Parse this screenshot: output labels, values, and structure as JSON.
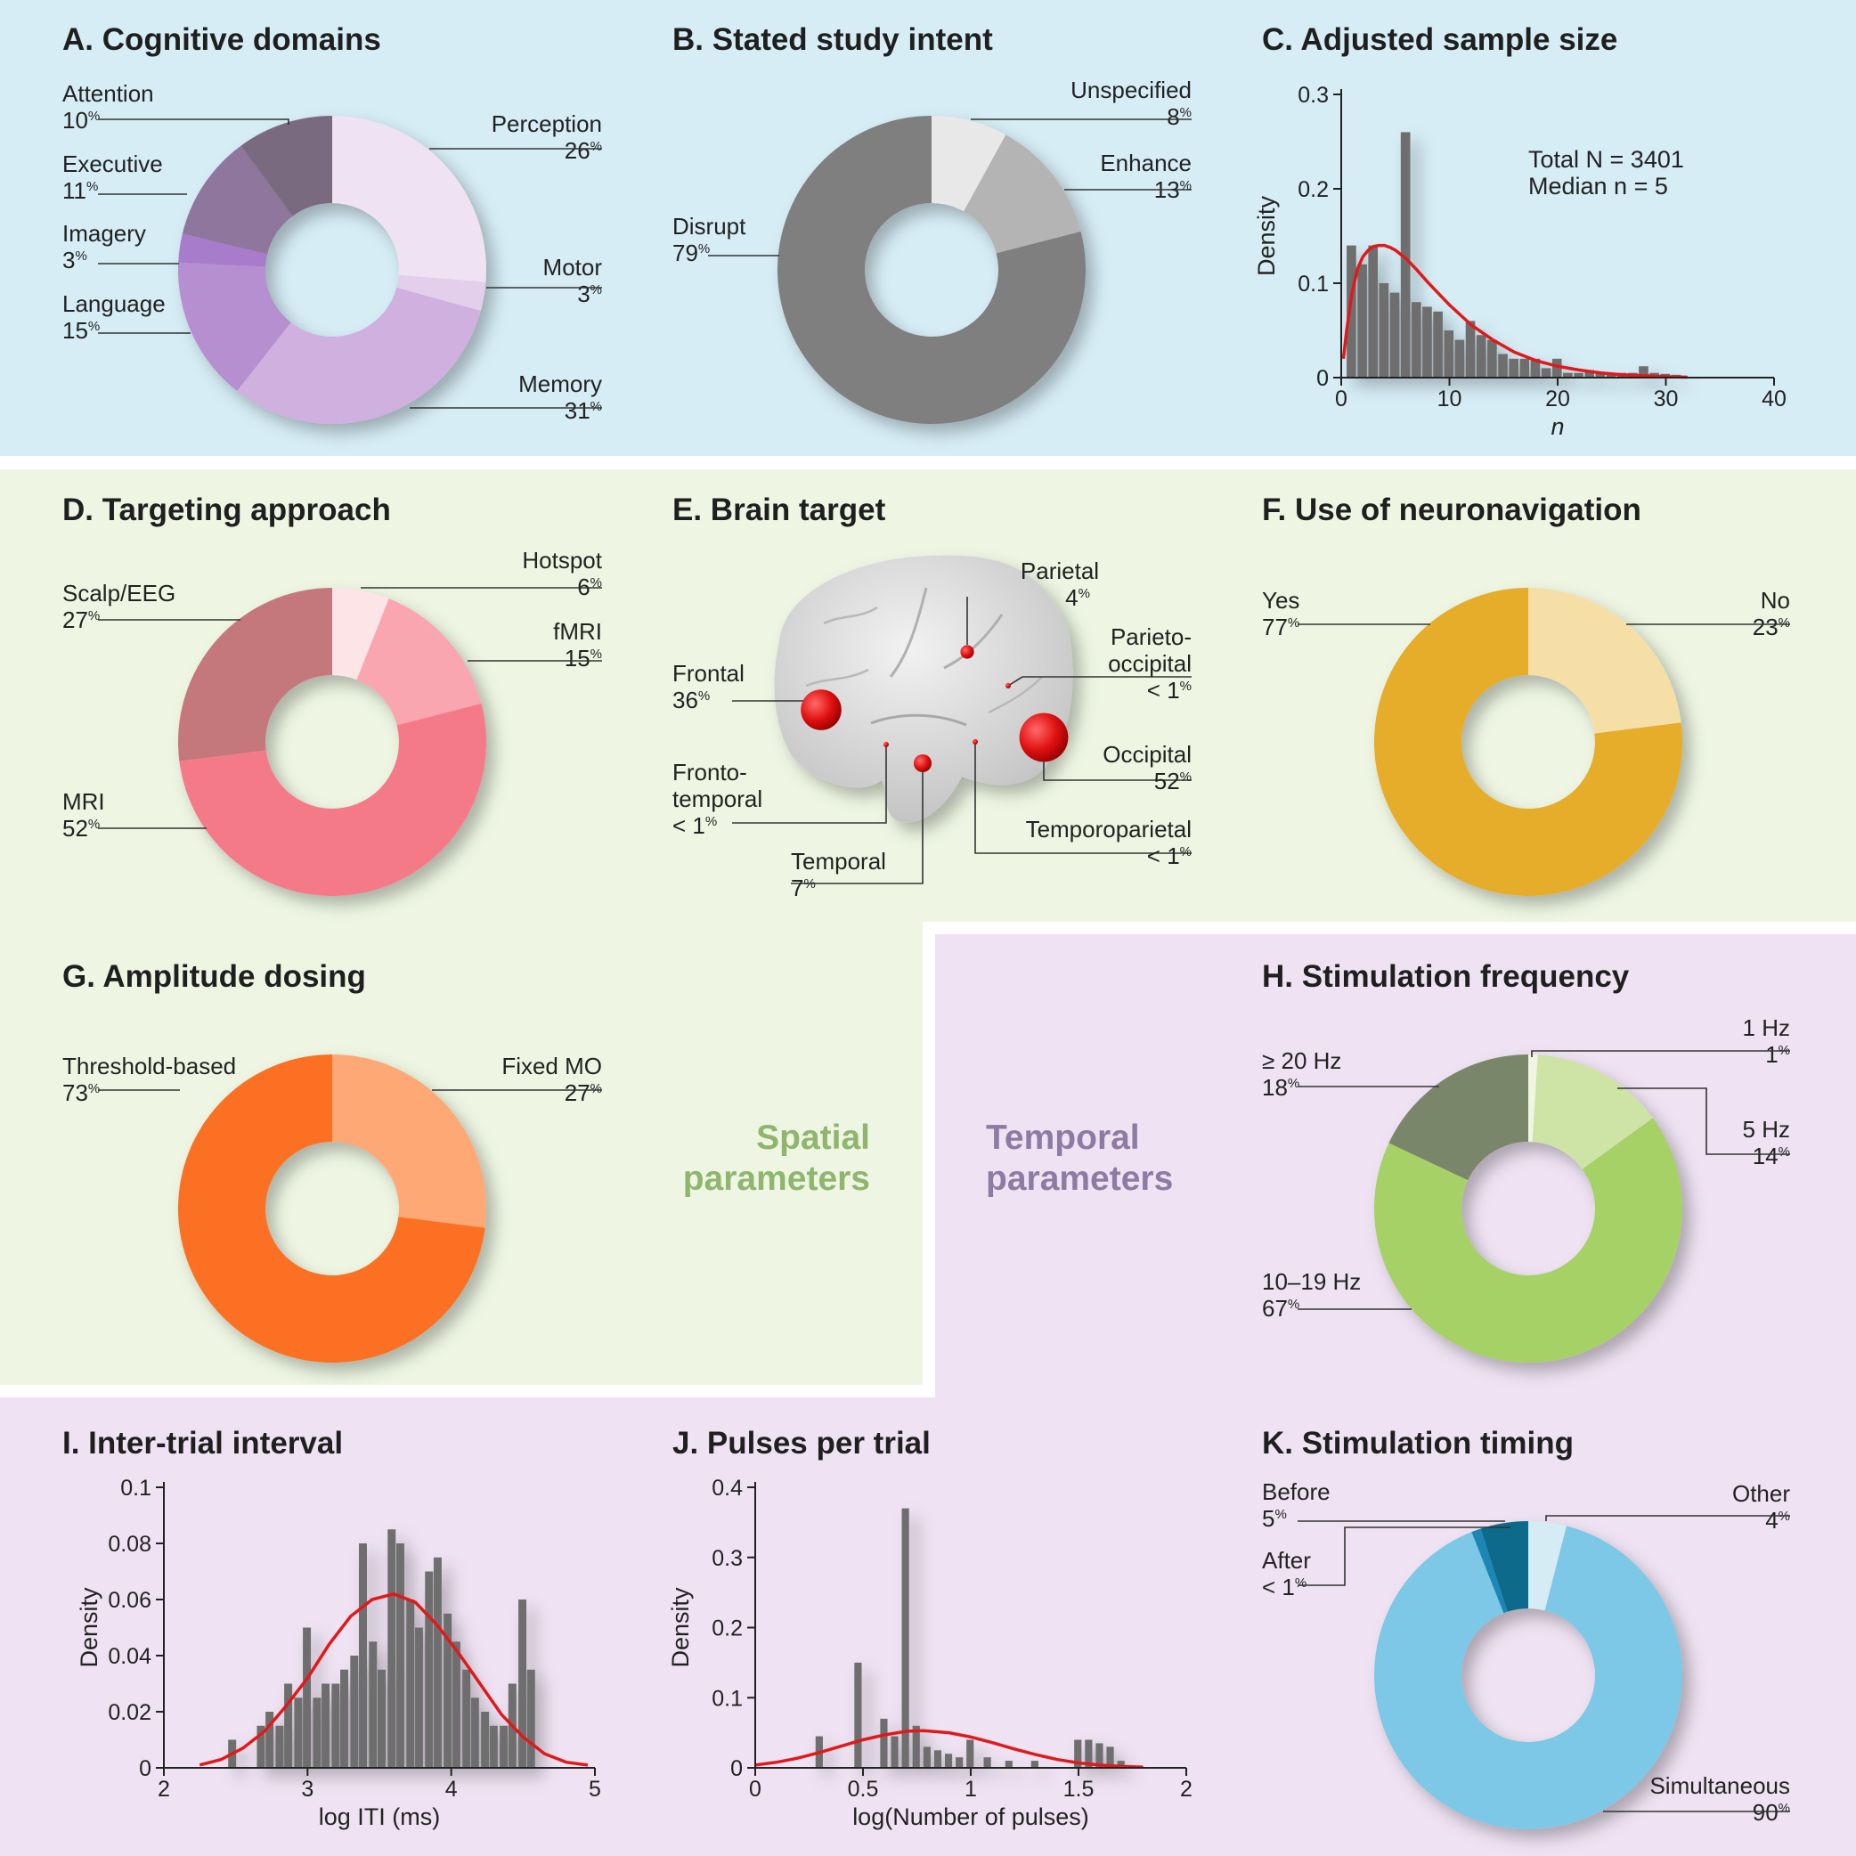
{
  "colors": {
    "blue_bg": "#d6edf6",
    "green_bg": "#eef6e3",
    "purple_bg": "#efe3f3",
    "hist_bar": "#6e6e6e",
    "fit_line": "#e0191b",
    "brain": "#d4d4d4",
    "target": "#e01010"
  },
  "sections": {
    "spatial": {
      "line1": "Spatial",
      "line2": "parameters",
      "color": "#8fb56e"
    },
    "temporal": {
      "line1": "Temporal",
      "line2": "parameters",
      "color": "#8f7aa3"
    }
  },
  "chart_data": [
    {
      "id": "A",
      "type": "pie",
      "title": "A. Cognitive domains",
      "slices": [
        {
          "label": "Perception",
          "pct": "26",
          "value": 26,
          "color": "#efe2f2"
        },
        {
          "label": "Motor",
          "pct": "3",
          "value": 3,
          "color": "#e3cfeb"
        },
        {
          "label": "Memory",
          "pct": "31",
          "value": 31,
          "color": "#cfb0de"
        },
        {
          "label": "Language",
          "pct": "15",
          "value": 15,
          "color": "#b58fcf"
        },
        {
          "label": "Imagery",
          "pct": "3",
          "value": 3,
          "color": "#a77bcb"
        },
        {
          "label": "Executive",
          "pct": "11",
          "value": 11,
          "color": "#8e769d"
        },
        {
          "label": "Attention",
          "pct": "10",
          "value": 10,
          "color": "#7a6a7f"
        }
      ]
    },
    {
      "id": "B",
      "type": "pie",
      "title": "B. Stated study intent",
      "slices": [
        {
          "label": "Unspecified",
          "pct": "8",
          "value": 8,
          "color": "#e8e8e8"
        },
        {
          "label": "Enhance",
          "pct": "13",
          "value": 13,
          "color": "#b4b4b4"
        },
        {
          "label": "Disrupt",
          "pct": "79",
          "value": 79,
          "color": "#7f7f7f"
        }
      ]
    },
    {
      "id": "C",
      "type": "bar",
      "title": "C. Adjusted sample size",
      "xlabel": "n",
      "ylabel": "Density",
      "xlim": [
        0,
        40
      ],
      "ylim": [
        0,
        0.3
      ],
      "xticks": [
        "0",
        "10",
        "20",
        "30",
        "40"
      ],
      "yticks": [
        "0",
        "0.1",
        "0.2",
        "0.3"
      ],
      "annotation_line1": "Total N = 3401",
      "annotation_line2": "Median n = 5",
      "bin_width": 1,
      "bins_x": [
        1,
        2,
        3,
        4,
        5,
        6,
        7,
        8,
        9,
        10,
        11,
        12,
        13,
        14,
        15,
        16,
        17,
        18,
        19,
        20,
        21,
        22,
        23,
        24,
        25,
        26,
        27,
        28,
        29,
        30,
        31
      ],
      "bins_y": [
        0.14,
        0.12,
        0.14,
        0.1,
        0.09,
        0.26,
        0.08,
        0.075,
        0.07,
        0.05,
        0.04,
        0.06,
        0.045,
        0.04,
        0.025,
        0.02,
        0.02,
        0.02,
        0.01,
        0.02,
        0.005,
        0.005,
        0.008,
        0.005,
        0.005,
        0.005,
        0.005,
        0.012,
        0.005,
        0.004,
        0.003
      ],
      "fit_x": [
        0.2,
        0.5,
        1,
        1.5,
        2,
        2.5,
        3,
        3.5,
        4,
        4.5,
        5,
        6,
        7,
        8,
        9,
        10,
        12,
        14,
        16,
        18,
        20,
        22,
        24,
        26,
        28,
        30,
        32
      ],
      "fit_y": [
        0.02,
        0.05,
        0.09,
        0.115,
        0.128,
        0.135,
        0.139,
        0.14,
        0.14,
        0.138,
        0.135,
        0.126,
        0.114,
        0.101,
        0.089,
        0.077,
        0.056,
        0.04,
        0.027,
        0.018,
        0.012,
        0.008,
        0.005,
        0.003,
        0.002,
        0.001,
        0.0005
      ]
    },
    {
      "id": "D",
      "type": "pie",
      "title": "D. Targeting approach",
      "slices": [
        {
          "label": "Hotspot",
          "pct": "6",
          "value": 6,
          "color": "#fde4e6"
        },
        {
          "label": "fMRI",
          "pct": "15",
          "value": 15,
          "color": "#f9a6b0"
        },
        {
          "label": "MRI",
          "pct": "52",
          "value": 52,
          "color": "#f57a88"
        },
        {
          "label": "Scalp/EEG",
          "pct": "27",
          "value": 27,
          "color": "#c5787c"
        }
      ]
    },
    {
      "id": "E",
      "type": "scatter",
      "title": "E. Brain target",
      "targets": [
        {
          "label1": "Parietal",
          "label2": "",
          "pct": "4",
          "value": 4
        },
        {
          "label1": "Parieto-",
          "label2": "occipital",
          "pct": "< 1",
          "value": 0.5
        },
        {
          "label1": "Frontal",
          "label2": "",
          "pct": "36",
          "value": 36
        },
        {
          "label1": "Occipital",
          "label2": "",
          "pct": "52",
          "value": 52
        },
        {
          "label1": "Fronto-",
          "label2": "temporal",
          "pct": "< 1",
          "value": 0.5
        },
        {
          "label1": "Temporoparietal",
          "label2": "",
          "pct": "< 1",
          "value": 0.5
        },
        {
          "label1": "Temporal",
          "label2": "",
          "pct": "7",
          "value": 7
        }
      ]
    },
    {
      "id": "F",
      "type": "pie",
      "title": "F. Use of neuronavigation",
      "slices": [
        {
          "label": "No",
          "pct": "23",
          "value": 23,
          "color": "#f5dfa7"
        },
        {
          "label": "Yes",
          "pct": "77",
          "value": 77,
          "color": "#e5ad2c"
        }
      ]
    },
    {
      "id": "G",
      "type": "pie",
      "title": "G. Amplitude dosing",
      "slices": [
        {
          "label": "Fixed MO",
          "pct": "27",
          "value": 27,
          "color": "#fda874"
        },
        {
          "label": "Threshold-based",
          "pct": "73",
          "value": 73,
          "color": "#fb7020"
        }
      ]
    },
    {
      "id": "H",
      "type": "pie",
      "title": "H. Stimulation frequency",
      "slices": [
        {
          "label": "1 Hz",
          "pct": "1",
          "value": 1,
          "color": "#eef5e0"
        },
        {
          "label": "5 Hz",
          "pct": "14",
          "value": 14,
          "color": "#cde4a6"
        },
        {
          "label": "10–19 Hz",
          "pct": "67",
          "value": 67,
          "color": "#a6d166"
        },
        {
          "label": "≥ 20 Hz",
          "pct": "18",
          "value": 18,
          "color": "#79866a"
        }
      ]
    },
    {
      "id": "I",
      "type": "bar",
      "title": "I. Inter-trial interval",
      "xlabel": "log ITI (ms)",
      "ylabel": "Density",
      "xlim": [
        2,
        5
      ],
      "ylim": [
        0,
        0.1
      ],
      "xticks": [
        "2",
        "3",
        "4",
        "5"
      ],
      "yticks": [
        "0",
        "0.02",
        "0.04",
        "0.06",
        "0.08",
        "0.1"
      ],
      "bin_width": 0.065,
      "bins_x": [
        2.48,
        2.68,
        2.74,
        2.81,
        2.87,
        2.94,
        3.0,
        3.07,
        3.13,
        3.2,
        3.26,
        3.33,
        3.39,
        3.46,
        3.52,
        3.59,
        3.65,
        3.72,
        3.78,
        3.85,
        3.91,
        3.98,
        4.04,
        4.11,
        4.17,
        4.24,
        4.3,
        4.37,
        4.43,
        4.5,
        4.56
      ],
      "bins_y": [
        0.01,
        0.015,
        0.02,
        0.015,
        0.03,
        0.025,
        0.05,
        0.025,
        0.03,
        0.03,
        0.035,
        0.04,
        0.08,
        0.045,
        0.035,
        0.085,
        0.08,
        0.06,
        0.05,
        0.07,
        0.075,
        0.055,
        0.045,
        0.035,
        0.025,
        0.02,
        0.015,
        0.015,
        0.03,
        0.06,
        0.035
      ],
      "fit_x": [
        2.25,
        2.4,
        2.55,
        2.7,
        2.85,
        3.0,
        3.15,
        3.3,
        3.45,
        3.6,
        3.75,
        3.9,
        4.05,
        4.2,
        4.35,
        4.5,
        4.65,
        4.8,
        4.95
      ],
      "fit_y": [
        0.001,
        0.003,
        0.007,
        0.013,
        0.022,
        0.032,
        0.044,
        0.054,
        0.06,
        0.062,
        0.059,
        0.051,
        0.041,
        0.03,
        0.019,
        0.011,
        0.005,
        0.002,
        0.001
      ]
    },
    {
      "id": "J",
      "type": "bar",
      "title": "J. Pulses per trial",
      "xlabel": "log(Number of pulses)",
      "ylabel": "Density",
      "xlim": [
        0,
        2
      ],
      "ylim": [
        0,
        0.4
      ],
      "xticks": [
        "0",
        "0.5",
        "1",
        "1.5",
        "2"
      ],
      "yticks": [
        "0",
        "0.1",
        "0.2",
        "0.3",
        "0.4"
      ],
      "bin_width": 0.04,
      "bins_x": [
        0.3,
        0.48,
        0.6,
        0.65,
        0.7,
        0.75,
        0.8,
        0.85,
        0.9,
        0.95,
        1.0,
        1.08,
        1.18,
        1.3,
        1.5,
        1.55,
        1.6,
        1.65,
        1.7
      ],
      "bins_y": [
        0.045,
        0.15,
        0.07,
        0.045,
        0.37,
        0.06,
        0.03,
        0.025,
        0.02,
        0.015,
        0.04,
        0.015,
        0.01,
        0.01,
        0.04,
        0.04,
        0.035,
        0.03,
        0.01
      ],
      "fit_x": [
        0,
        0.1,
        0.2,
        0.3,
        0.4,
        0.5,
        0.6,
        0.7,
        0.78,
        0.9,
        1.0,
        1.1,
        1.2,
        1.3,
        1.4,
        1.5,
        1.6,
        1.7,
        1.8
      ],
      "fit_y": [
        0.004,
        0.008,
        0.014,
        0.022,
        0.031,
        0.04,
        0.047,
        0.052,
        0.053,
        0.05,
        0.044,
        0.036,
        0.027,
        0.019,
        0.012,
        0.007,
        0.004,
        0.002,
        0.001
      ]
    },
    {
      "id": "K",
      "type": "pie",
      "title": "K. Stimulation timing",
      "slices": [
        {
          "label": "Other",
          "pct": "4",
          "value": 4,
          "color": "#d5ecf4"
        },
        {
          "label": "Simultaneous",
          "pct": "90",
          "value": 90,
          "color": "#7bc8e6"
        },
        {
          "label": "After",
          "pct": "< 1",
          "value": 1,
          "color": "#1f86b5"
        },
        {
          "label": "Before",
          "pct": "5",
          "value": 5,
          "color": "#0f6a8b"
        }
      ]
    }
  ]
}
